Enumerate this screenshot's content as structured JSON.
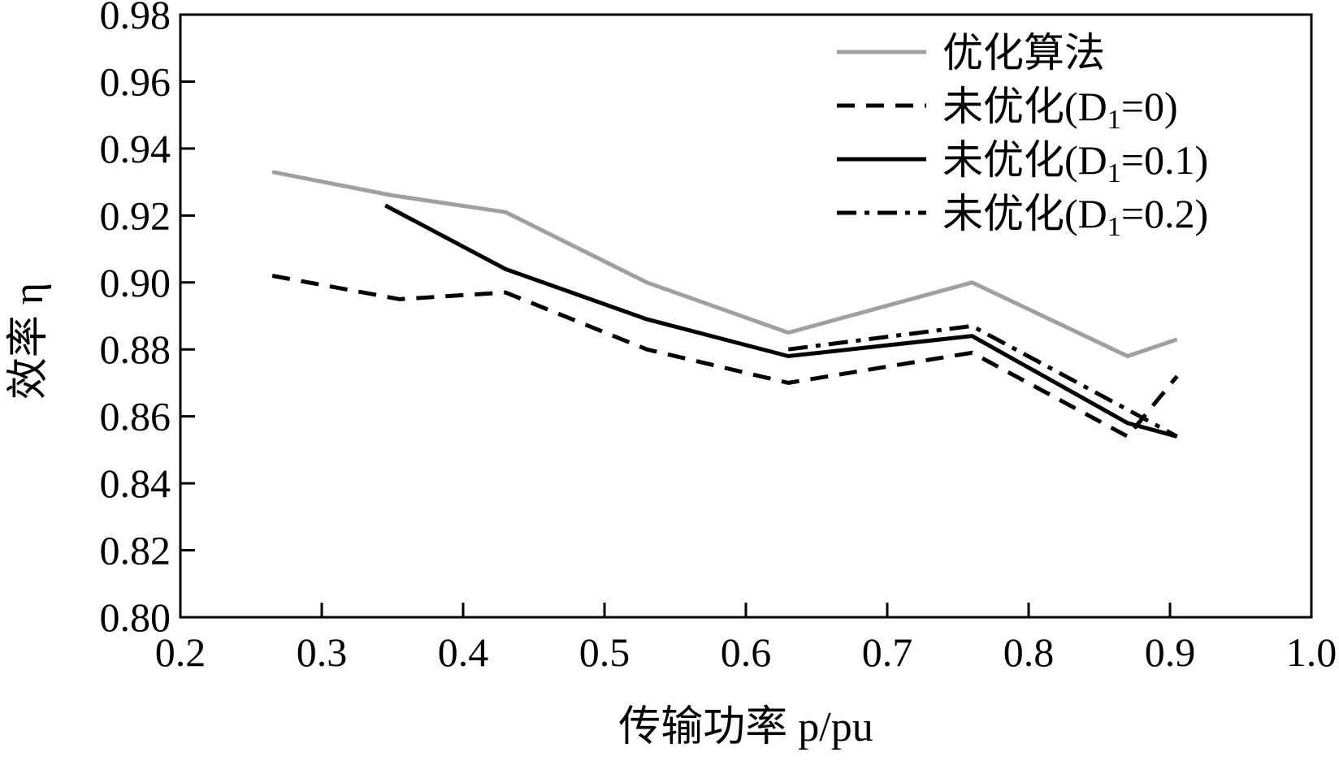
{
  "chart_data": {
    "type": "line",
    "xlabel": "传输功率 p/pu",
    "ylabel": "效率 η",
    "xlim": [
      0.2,
      1.0
    ],
    "ylim": [
      0.8,
      0.98
    ],
    "x_ticks": [
      "0.2",
      "0.3",
      "0.4",
      "0.5",
      "0.6",
      "0.7",
      "0.8",
      "0.9",
      "1.0"
    ],
    "y_ticks": [
      "0.80",
      "0.82",
      "0.84",
      "0.86",
      "0.88",
      "0.90",
      "0.92",
      "0.94",
      "0.96",
      "0.98"
    ],
    "grid": false,
    "legend_position": "top-right",
    "series": [
      {
        "name": "优化算法",
        "style": "solid",
        "color": "#a0a0a0",
        "points": [
          [
            0.265,
            0.933
          ],
          [
            0.35,
            0.926
          ],
          [
            0.43,
            0.921
          ],
          [
            0.53,
            0.9
          ],
          [
            0.63,
            0.885
          ],
          [
            0.76,
            0.9
          ],
          [
            0.87,
            0.878
          ],
          [
            0.905,
            0.883
          ]
        ]
      },
      {
        "name": "未优化(D1=0)",
        "style": "dashed",
        "color": "#000000",
        "points": [
          [
            0.265,
            0.902
          ],
          [
            0.355,
            0.895
          ],
          [
            0.43,
            0.897
          ],
          [
            0.53,
            0.88
          ],
          [
            0.63,
            0.87
          ],
          [
            0.76,
            0.879
          ],
          [
            0.87,
            0.854
          ],
          [
            0.905,
            0.872
          ]
        ]
      },
      {
        "name": "未优化(D1=0.1)",
        "style": "solid",
        "color": "#000000",
        "points": [
          [
            0.345,
            0.923
          ],
          [
            0.43,
            0.904
          ],
          [
            0.53,
            0.889
          ],
          [
            0.63,
            0.878
          ],
          [
            0.76,
            0.884
          ],
          [
            0.87,
            0.858
          ],
          [
            0.905,
            0.854
          ]
        ]
      },
      {
        "name": "未优化(D1=0.2)",
        "style": "dashdot",
        "color": "#000000",
        "points": [
          [
            0.63,
            0.88
          ],
          [
            0.76,
            0.887
          ],
          [
            0.87,
            0.862
          ],
          [
            0.905,
            0.854
          ]
        ]
      }
    ],
    "legend": [
      {
        "prefix": "优化算法",
        "subscript": "",
        "suffix": ""
      },
      {
        "prefix": "未优化(D",
        "subscript": "1",
        "suffix": "=0)"
      },
      {
        "prefix": "未优化(D",
        "subscript": "1",
        "suffix": "=0.1)"
      },
      {
        "prefix": "未优化(D",
        "subscript": "1",
        "suffix": "=0.2)"
      }
    ]
  }
}
